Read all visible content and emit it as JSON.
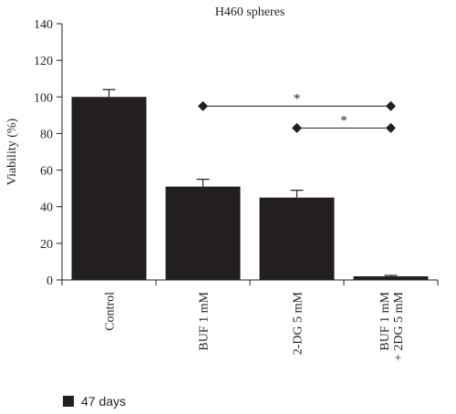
{
  "chart_data": {
    "type": "bar",
    "title": "H460 spheres",
    "ylabel": "Viability (%)",
    "xlabel": "",
    "ylim": [
      0,
      140
    ],
    "yticks": [
      0,
      20,
      40,
      60,
      80,
      100,
      120,
      140
    ],
    "categories": [
      "Control",
      "BUF 1 mM",
      "2-DG 5 mM",
      "BUF 1 mM\n+ 2DG 5 mM"
    ],
    "series": [
      {
        "name": "47 days",
        "color": "#231f20",
        "values": [
          100,
          51,
          45,
          2
        ],
        "errors": [
          4,
          4,
          4,
          0.5
        ]
      }
    ],
    "annotations": [
      {
        "label": "*",
        "from": "BUF 1 mM",
        "to": "BUF 1 mM\n+ 2DG 5 mM",
        "y": 95
      },
      {
        "label": "*",
        "from": "2-DG 5 mM",
        "to": "BUF 1 mM\n+ 2DG 5 mM",
        "y": 83
      }
    ],
    "grid": false,
    "legend_position": "bottom-left"
  }
}
